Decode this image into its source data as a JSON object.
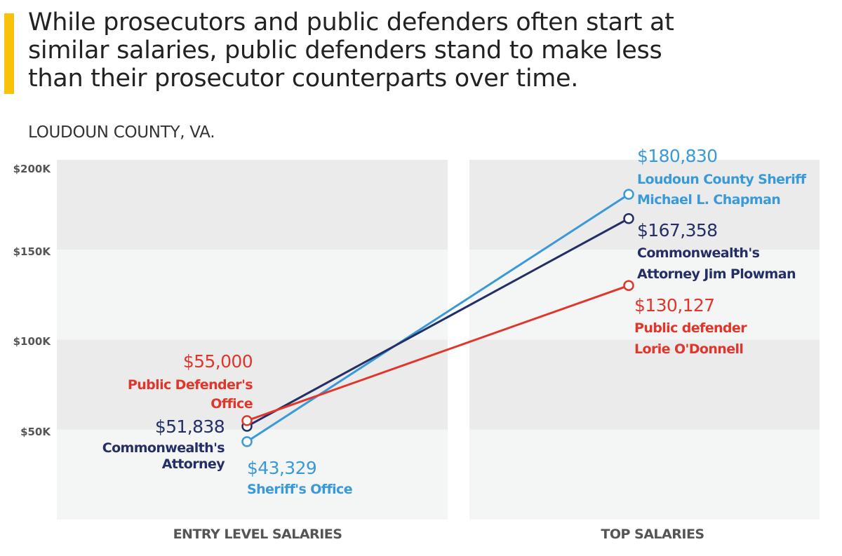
{
  "header": {
    "headline_lines": [
      "While prosecutors and public defenders often start at",
      "similar salaries, public defenders stand to make less",
      "than their prosecutor counterparts over time."
    ],
    "subtitle": "LOUDOUN COUNTY, VA.",
    "accent_color": "#f9c20a"
  },
  "chart_data": {
    "type": "line",
    "title": "While prosecutors and public defenders often start at similar salaries, public defenders stand to make less than their prosecutor counterparts over time.",
    "subtitle": "LOUDOUN COUNTY, VA.",
    "categories": [
      "ENTRY LEVEL SALARIES",
      "TOP SALARIES"
    ],
    "xlabel": "",
    "ylabel": "",
    "ylim": [
      0,
      200000
    ],
    "yticks": [
      {
        "value": 200000,
        "label": "$200K"
      },
      {
        "value": 150000,
        "label": "$150K"
      },
      {
        "value": 100000,
        "label": "$100K"
      },
      {
        "value": 50000,
        "label": "$50K"
      }
    ],
    "band_colors": [
      "#ebebeb",
      "#f4f5f5"
    ],
    "grid": false,
    "legend": "none",
    "series": [
      {
        "name": "Sheriff",
        "color": "#3a9ad9",
        "values": [
          43329,
          180830
        ],
        "labels": [
          {
            "value_text": "$43,329",
            "lines": [
              "Sheriff's Office"
            ]
          },
          {
            "value_text": "$180,830",
            "lines": [
              "Loudoun County Sheriff",
              "Michael L. Chapman"
            ]
          }
        ]
      },
      {
        "name": "Commonwealth's Attorney",
        "color": "#232f66",
        "values": [
          51838,
          167358
        ],
        "labels": [
          {
            "value_text": "$51,838",
            "lines": [
              "Commonwealth's",
              "Attorney"
            ]
          },
          {
            "value_text": "$167,358",
            "lines": [
              "Commonwealth's",
              "Attorney Jim Plowman"
            ]
          }
        ]
      },
      {
        "name": "Public Defender",
        "color": "#e0362c",
        "values": [
          55000,
          130127
        ],
        "labels": [
          {
            "value_text": "$55,000",
            "lines": [
              "Public Defender's",
              "Office"
            ]
          },
          {
            "value_text": "$130,127",
            "lines": [
              "Public defender",
              "Lorie O'Donnell"
            ]
          }
        ]
      }
    ]
  }
}
